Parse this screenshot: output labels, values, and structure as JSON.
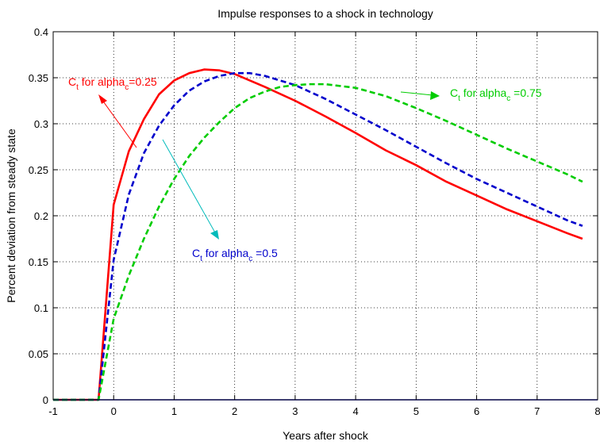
{
  "chart_data": {
    "type": "line",
    "title": "Impulse responses to a shock in technology",
    "xlabel": "Years after shock",
    "ylabel": "Percent deviation from steady state",
    "xlim": [
      -1,
      8
    ],
    "ylim": [
      0,
      0.4
    ],
    "xticks": [
      -1,
      0,
      1,
      2,
      3,
      4,
      5,
      6,
      7,
      8
    ],
    "yticks": [
      0,
      0.05,
      0.1,
      0.15,
      0.2,
      0.25,
      0.3,
      0.35,
      0.4
    ],
    "xtick_labels": [
      "-1",
      "0",
      "1",
      "2",
      "3",
      "4",
      "5",
      "6",
      "7",
      "8"
    ],
    "ytick_labels": [
      "0",
      "0.05",
      "0.1",
      "0.15",
      "0.2",
      "0.25",
      "0.3",
      "0.35",
      "0.4"
    ],
    "grid": true,
    "series": [
      {
        "color": "#ff0000",
        "dash": "solid",
        "x": [
          -1,
          -0.25,
          0,
          0.25,
          0.5,
          0.75,
          1,
          1.25,
          1.5,
          1.75,
          2,
          2.5,
          3,
          3.5,
          4,
          4.5,
          5,
          5.5,
          6,
          6.5,
          7,
          7.5,
          7.75
        ],
        "y": [
          0,
          0,
          0.212,
          0.27,
          0.305,
          0.332,
          0.347,
          0.355,
          0.359,
          0.358,
          0.354,
          0.34,
          0.325,
          0.308,
          0.29,
          0.271,
          0.255,
          0.237,
          0.222,
          0.207,
          0.194,
          0.181,
          0.175
        ]
      },
      {
        "color": "#0000cc",
        "dash": "dashed",
        "x": [
          -1,
          -0.25,
          0,
          0.25,
          0.5,
          0.75,
          1,
          1.25,
          1.5,
          1.75,
          2,
          2.25,
          2.5,
          3,
          3.5,
          4,
          4.5,
          5,
          5.5,
          6,
          6.5,
          7,
          7.5,
          7.75
        ],
        "y": [
          0,
          0,
          0.152,
          0.223,
          0.268,
          0.298,
          0.32,
          0.336,
          0.346,
          0.352,
          0.355,
          0.355,
          0.352,
          0.342,
          0.327,
          0.31,
          0.293,
          0.275,
          0.257,
          0.24,
          0.225,
          0.21,
          0.195,
          0.189
        ]
      },
      {
        "color": "#00cc00",
        "dash": "dashed",
        "x": [
          -1,
          -0.25,
          0,
          0.25,
          0.5,
          0.75,
          1,
          1.25,
          1.5,
          1.75,
          2,
          2.25,
          2.5,
          2.75,
          3,
          3.25,
          3.5,
          4,
          4.5,
          5,
          5.5,
          6,
          6.5,
          7,
          7.5,
          7.75
        ],
        "y": [
          0,
          0,
          0.088,
          0.135,
          0.175,
          0.21,
          0.24,
          0.265,
          0.285,
          0.302,
          0.317,
          0.328,
          0.335,
          0.34,
          0.342,
          0.343,
          0.343,
          0.339,
          0.33,
          0.317,
          0.303,
          0.288,
          0.273,
          0.259,
          0.245,
          0.237
        ]
      }
    ],
    "annotations": [
      {
        "id": "red",
        "color": "#ff0000",
        "base": "C",
        "sub1": "t",
        "mid": " for alpha",
        "sub2": "c",
        "tail": "=0.25"
      },
      {
        "id": "blue",
        "color": "#0000cc",
        "base": "C",
        "sub1": "t",
        "mid": " for alpha",
        "sub2": "c",
        "tail": " =0.5"
      },
      {
        "id": "green",
        "color": "#00cc00",
        "base": "C",
        "sub1": "t",
        "mid": " for alpha",
        "sub2": "c",
        "tail": " =0.75"
      }
    ]
  }
}
